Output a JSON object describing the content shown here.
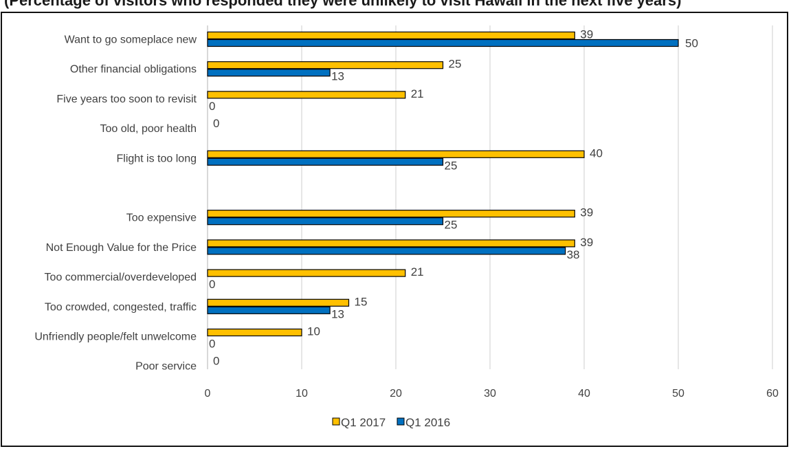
{
  "header_fragment": "(Percentage of visitors who responded they were unlikely to visit Hawaii in the next five years)",
  "colors": {
    "q1_2017": "#FFC000",
    "q1_2016": "#0070C0",
    "grid": "#d9d9d9",
    "text": "#404040"
  },
  "chart_data": {
    "type": "bar",
    "orientation": "horizontal",
    "categories": [
      "Want to go someplace new",
      "Other financial obligations",
      "Five years too soon to revisit",
      "Too old, poor health",
      "Flight is too long",
      "",
      "Too expensive",
      "Not Enough Value for the Price",
      "Too commercial/overdeveloped",
      "Too crowded, congested, traffic",
      "Unfriendly people/felt unwelcome",
      "Poor service"
    ],
    "series": [
      {
        "name": "Q1 2017",
        "values": [
          39,
          25,
          21,
          0,
          40,
          null,
          39,
          39,
          21,
          15,
          10,
          0
        ]
      },
      {
        "name": "Q1 2016",
        "values": [
          50,
          13,
          0,
          null,
          25,
          null,
          25,
          38,
          0,
          13,
          0,
          null
        ]
      }
    ],
    "xlim": [
      0,
      60
    ],
    "xticks": [
      0,
      10,
      20,
      30,
      40,
      50,
      60
    ],
    "grid": true,
    "legend": "bottom"
  }
}
